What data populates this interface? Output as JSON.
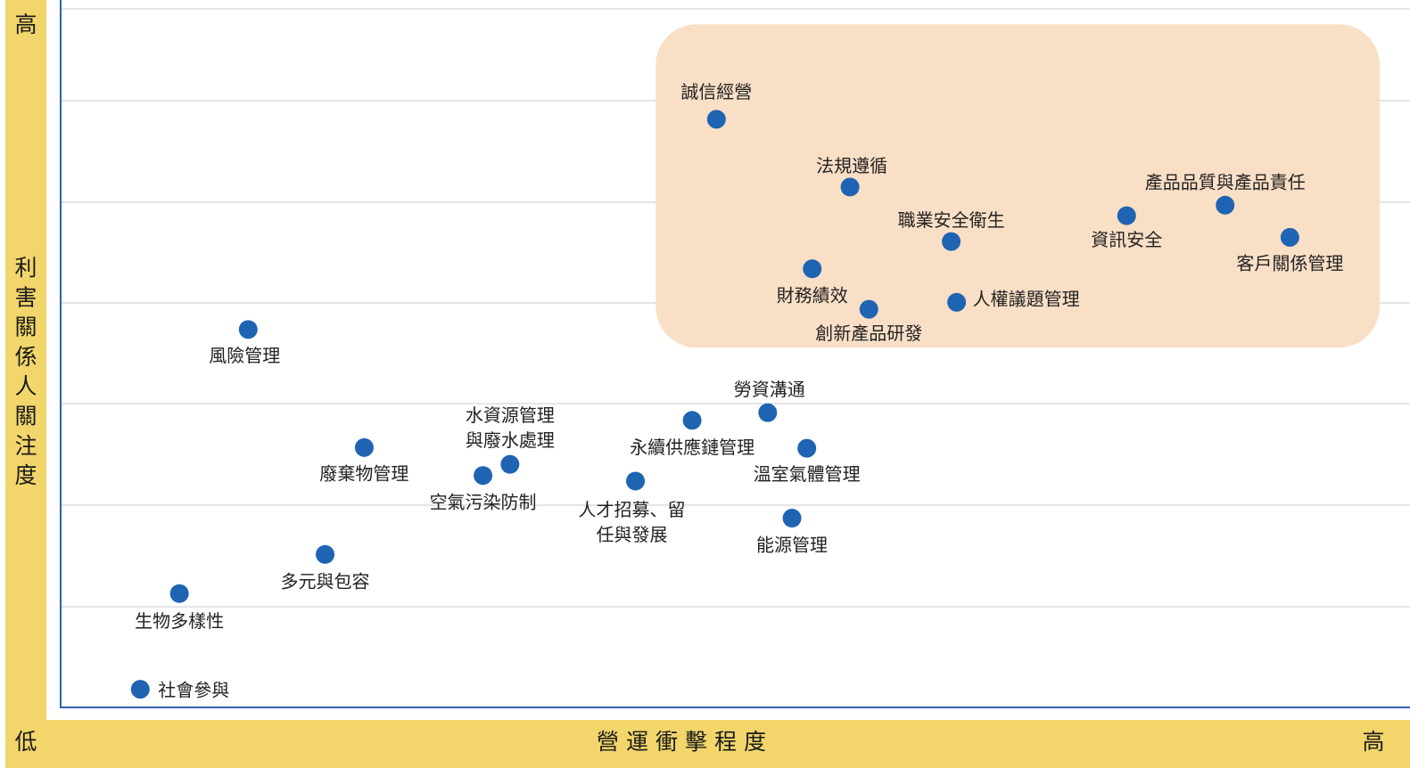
{
  "chart_data": {
    "type": "scatter",
    "title": "",
    "xlabel": "營運衝擊程度",
    "ylabel": "利害關係人關注度",
    "x_low_label": "低",
    "x_high_label": "高",
    "y_low_label": "低",
    "y_high_label": "高",
    "xlim": [
      0,
      100
    ],
    "ylim": [
      0,
      100
    ],
    "grid": "horizontal",
    "highlight_region": {
      "x": [
        44.1,
        100
      ],
      "y": [
        51.5,
        97.8
      ]
    },
    "colors": {
      "axis_band": "#f2d66b",
      "highlight": "#f9dfc6",
      "point": "#1f64b3",
      "axis_line": "#2f62b0"
    },
    "points": [
      {
        "name": "誠信經營",
        "x": 48.6,
        "y": 84.2
      },
      {
        "name": "法規遵循",
        "x": 58.5,
        "y": 74.5
      },
      {
        "name": "產品品質與產品責任",
        "x": 86.3,
        "y": 71.9
      },
      {
        "name": "資訊安全",
        "x": 79.0,
        "y": 70.4
      },
      {
        "name": "職業安全衛生",
        "x": 66.0,
        "y": 66.7
      },
      {
        "name": "客戶關係管理",
        "x": 91.1,
        "y": 67.3
      },
      {
        "name": "財務績效",
        "x": 55.7,
        "y": 62.8
      },
      {
        "name": "人權議題管理",
        "x": 66.4,
        "y": 58.0
      },
      {
        "name": "創新產品研發",
        "x": 59.9,
        "y": 57.0
      },
      {
        "name": "風險管理",
        "x": 13.9,
        "y": 54.1
      },
      {
        "name": "勞資溝通",
        "x": 52.4,
        "y": 42.2
      },
      {
        "name": "永續供應鏈管理",
        "x": 46.8,
        "y": 41.1
      },
      {
        "name": "溫室氣體管理",
        "x": 55.3,
        "y": 37.1
      },
      {
        "name": "廢棄物管理",
        "x": 22.5,
        "y": 37.2
      },
      {
        "name": "水資源管理與廢水處理",
        "x": 33.3,
        "y": 34.8
      },
      {
        "name": "空氣污染防制",
        "x": 31.3,
        "y": 33.2
      },
      {
        "name": "人才招募、留任與發展",
        "x": 42.6,
        "y": 32.4
      },
      {
        "name": "能源管理",
        "x": 54.2,
        "y": 27.1
      },
      {
        "name": "多元與包容",
        "x": 19.6,
        "y": 21.9
      },
      {
        "name": "生物多樣性",
        "x": 8.8,
        "y": 16.3
      },
      {
        "name": "社會參與",
        "x": 5.9,
        "y": 2.6
      }
    ]
  }
}
